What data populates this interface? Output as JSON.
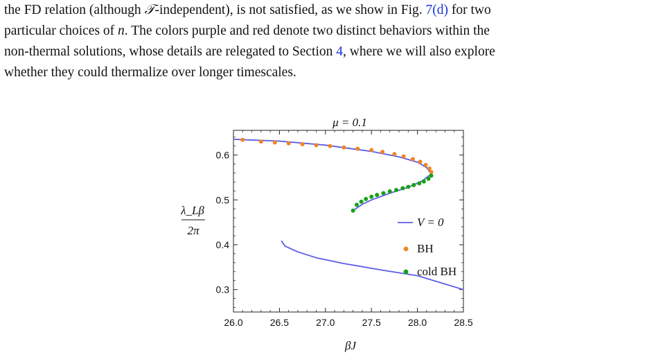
{
  "paragraph": {
    "line1_a": "the FD relation (although ",
    "line1_T": "𝒯",
    "line1_b": "-independent), is not satisfied, as we show in Fig. ",
    "line1_ref": "7(d)",
    "line1_c": " for two",
    "line2_a": "particular choices of ",
    "line2_n": "n",
    "line2_b": ". The colors purple and red denote two distinct behaviors within the",
    "line3_a": "non-thermal solutions, whose details are relegated to Section ",
    "line3_ref": "4",
    "line3_b": ", where we will also explore",
    "line4": "whether they could thermalize over longer timescales."
  },
  "chart_data": {
    "type": "scatter",
    "title": "μ = 0.1",
    "xlabel": "βJ",
    "ylabel_num": "λ_Lβ",
    "ylabel_den": "2π",
    "xlim": [
      26.0,
      28.5
    ],
    "ylim": [
      0.25,
      0.655
    ],
    "xticks": [
      26.0,
      26.5,
      27.0,
      27.5,
      28.0,
      28.5
    ],
    "xtick_labels": [
      "26.0",
      "26.5",
      "27.0",
      "27.5",
      "28.0",
      "28.5"
    ],
    "yticks": [
      0.3,
      0.4,
      0.5,
      0.6
    ],
    "ytick_labels": [
      "0.3",
      "0.4",
      "0.5",
      "0.6"
    ],
    "grid": false,
    "legend_position": "right",
    "legend": [
      {
        "label": "V = 0",
        "marker": "line",
        "color": "#5b5be6"
      },
      {
        "label": "BH",
        "marker": "dot",
        "color": "#f08526"
      },
      {
        "label": "cold BH",
        "marker": "dot",
        "color": "#16a114"
      }
    ],
    "series": [
      {
        "name": "V = 0",
        "kind": "line",
        "color": "#5b5be6",
        "segments": [
          [
            [
              26.0,
              0.635
            ],
            [
              26.5,
              0.631
            ],
            [
              27.0,
              0.622
            ],
            [
              27.5,
              0.608
            ],
            [
              27.8,
              0.596
            ],
            [
              28.0,
              0.584
            ],
            [
              28.1,
              0.572
            ],
            [
              28.15,
              0.558
            ]
          ],
          [
            [
              28.15,
              0.558
            ],
            [
              28.05,
              0.542
            ],
            [
              27.9,
              0.528
            ],
            [
              27.7,
              0.515
            ],
            [
              27.5,
              0.5
            ],
            [
              27.4,
              0.49
            ],
            [
              27.3,
              0.476
            ]
          ],
          [
            [
              26.52,
              0.409
            ],
            [
              26.56,
              0.397
            ],
            [
              26.7,
              0.384
            ],
            [
              26.9,
              0.371
            ],
            [
              27.2,
              0.358
            ],
            [
              27.6,
              0.344
            ],
            [
              28.0,
              0.331
            ],
            [
              28.5,
              0.3
            ]
          ]
        ]
      },
      {
        "name": "BH",
        "kind": "scatter",
        "color": "#f08526",
        "points": [
          [
            26.1,
            0.634
          ],
          [
            26.3,
            0.63
          ],
          [
            26.45,
            0.628
          ],
          [
            26.6,
            0.626
          ],
          [
            26.75,
            0.624
          ],
          [
            26.9,
            0.622
          ],
          [
            27.05,
            0.62
          ],
          [
            27.2,
            0.617
          ],
          [
            27.35,
            0.614
          ],
          [
            27.5,
            0.611
          ],
          [
            27.62,
            0.607
          ],
          [
            27.75,
            0.602
          ],
          [
            27.85,
            0.597
          ],
          [
            27.95,
            0.591
          ],
          [
            28.03,
            0.585
          ],
          [
            28.09,
            0.578
          ],
          [
            28.13,
            0.57
          ],
          [
            28.15,
            0.562
          ]
        ]
      },
      {
        "name": "cold BH",
        "kind": "scatter",
        "color": "#16a114",
        "points": [
          [
            28.15,
            0.554
          ],
          [
            28.12,
            0.547
          ],
          [
            28.07,
            0.541
          ],
          [
            28.02,
            0.537
          ],
          [
            27.96,
            0.533
          ],
          [
            27.9,
            0.529
          ],
          [
            27.84,
            0.526
          ],
          [
            27.77,
            0.522
          ],
          [
            27.7,
            0.519
          ],
          [
            27.63,
            0.515
          ],
          [
            27.56,
            0.511
          ],
          [
            27.5,
            0.507
          ],
          [
            27.44,
            0.502
          ],
          [
            27.39,
            0.496
          ],
          [
            27.34,
            0.489
          ],
          [
            27.3,
            0.476
          ]
        ]
      }
    ]
  }
}
